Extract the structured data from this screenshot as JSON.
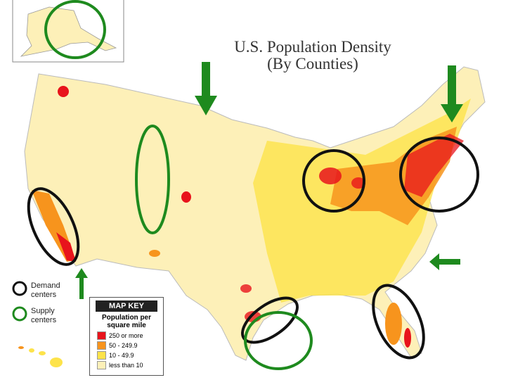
{
  "title": "U.S. Population Density",
  "subtitle": "(By Counties)",
  "legend": [
    "Demand centers",
    "Supply centers"
  ],
  "map_key": {
    "title": "MAP KEY",
    "heading": "Population per square mile",
    "entries": [
      "250 or more",
      "50 - 249.9",
      "10 - 49.9",
      "less than 10"
    ]
  }
}
